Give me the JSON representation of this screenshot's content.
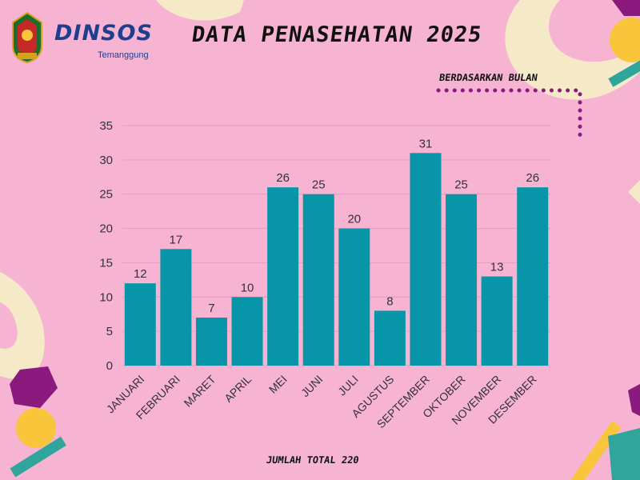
{
  "header": {
    "logo_text": "DINSOS",
    "logo_sub": "Temanggung",
    "title": "DATA PENASEHATAN 2025",
    "subtitle": "BERDASARKAN BULAN"
  },
  "footer": {
    "total": "JUMLAH TOTAL 220"
  },
  "colors": {
    "background": "#f7b4d2",
    "bar": "#0895a8",
    "accent_purple": "#8a1a7e",
    "accent_yellow": "#f8c53b",
    "accent_teal": "#2fa59c",
    "accent_cream": "#f5e9c8"
  },
  "chart_data": {
    "type": "bar",
    "title": "DATA PENASEHATAN 2025",
    "categories": [
      "JANUARI",
      "FEBRUARI",
      "MARET",
      "APRIL",
      "MEI",
      "JUNI",
      "JULI",
      "AGUSTUS",
      "SEPTEMBER",
      "OKTOBER",
      "NOVEMBER",
      "DESEMBER"
    ],
    "values": [
      12,
      17,
      7,
      10,
      26,
      25,
      20,
      8,
      31,
      25,
      13,
      26
    ],
    "ylim": [
      0,
      35
    ],
    "yticks": [
      0,
      5,
      10,
      15,
      20,
      25,
      30,
      35
    ],
    "grid": true,
    "data_labels": true
  }
}
